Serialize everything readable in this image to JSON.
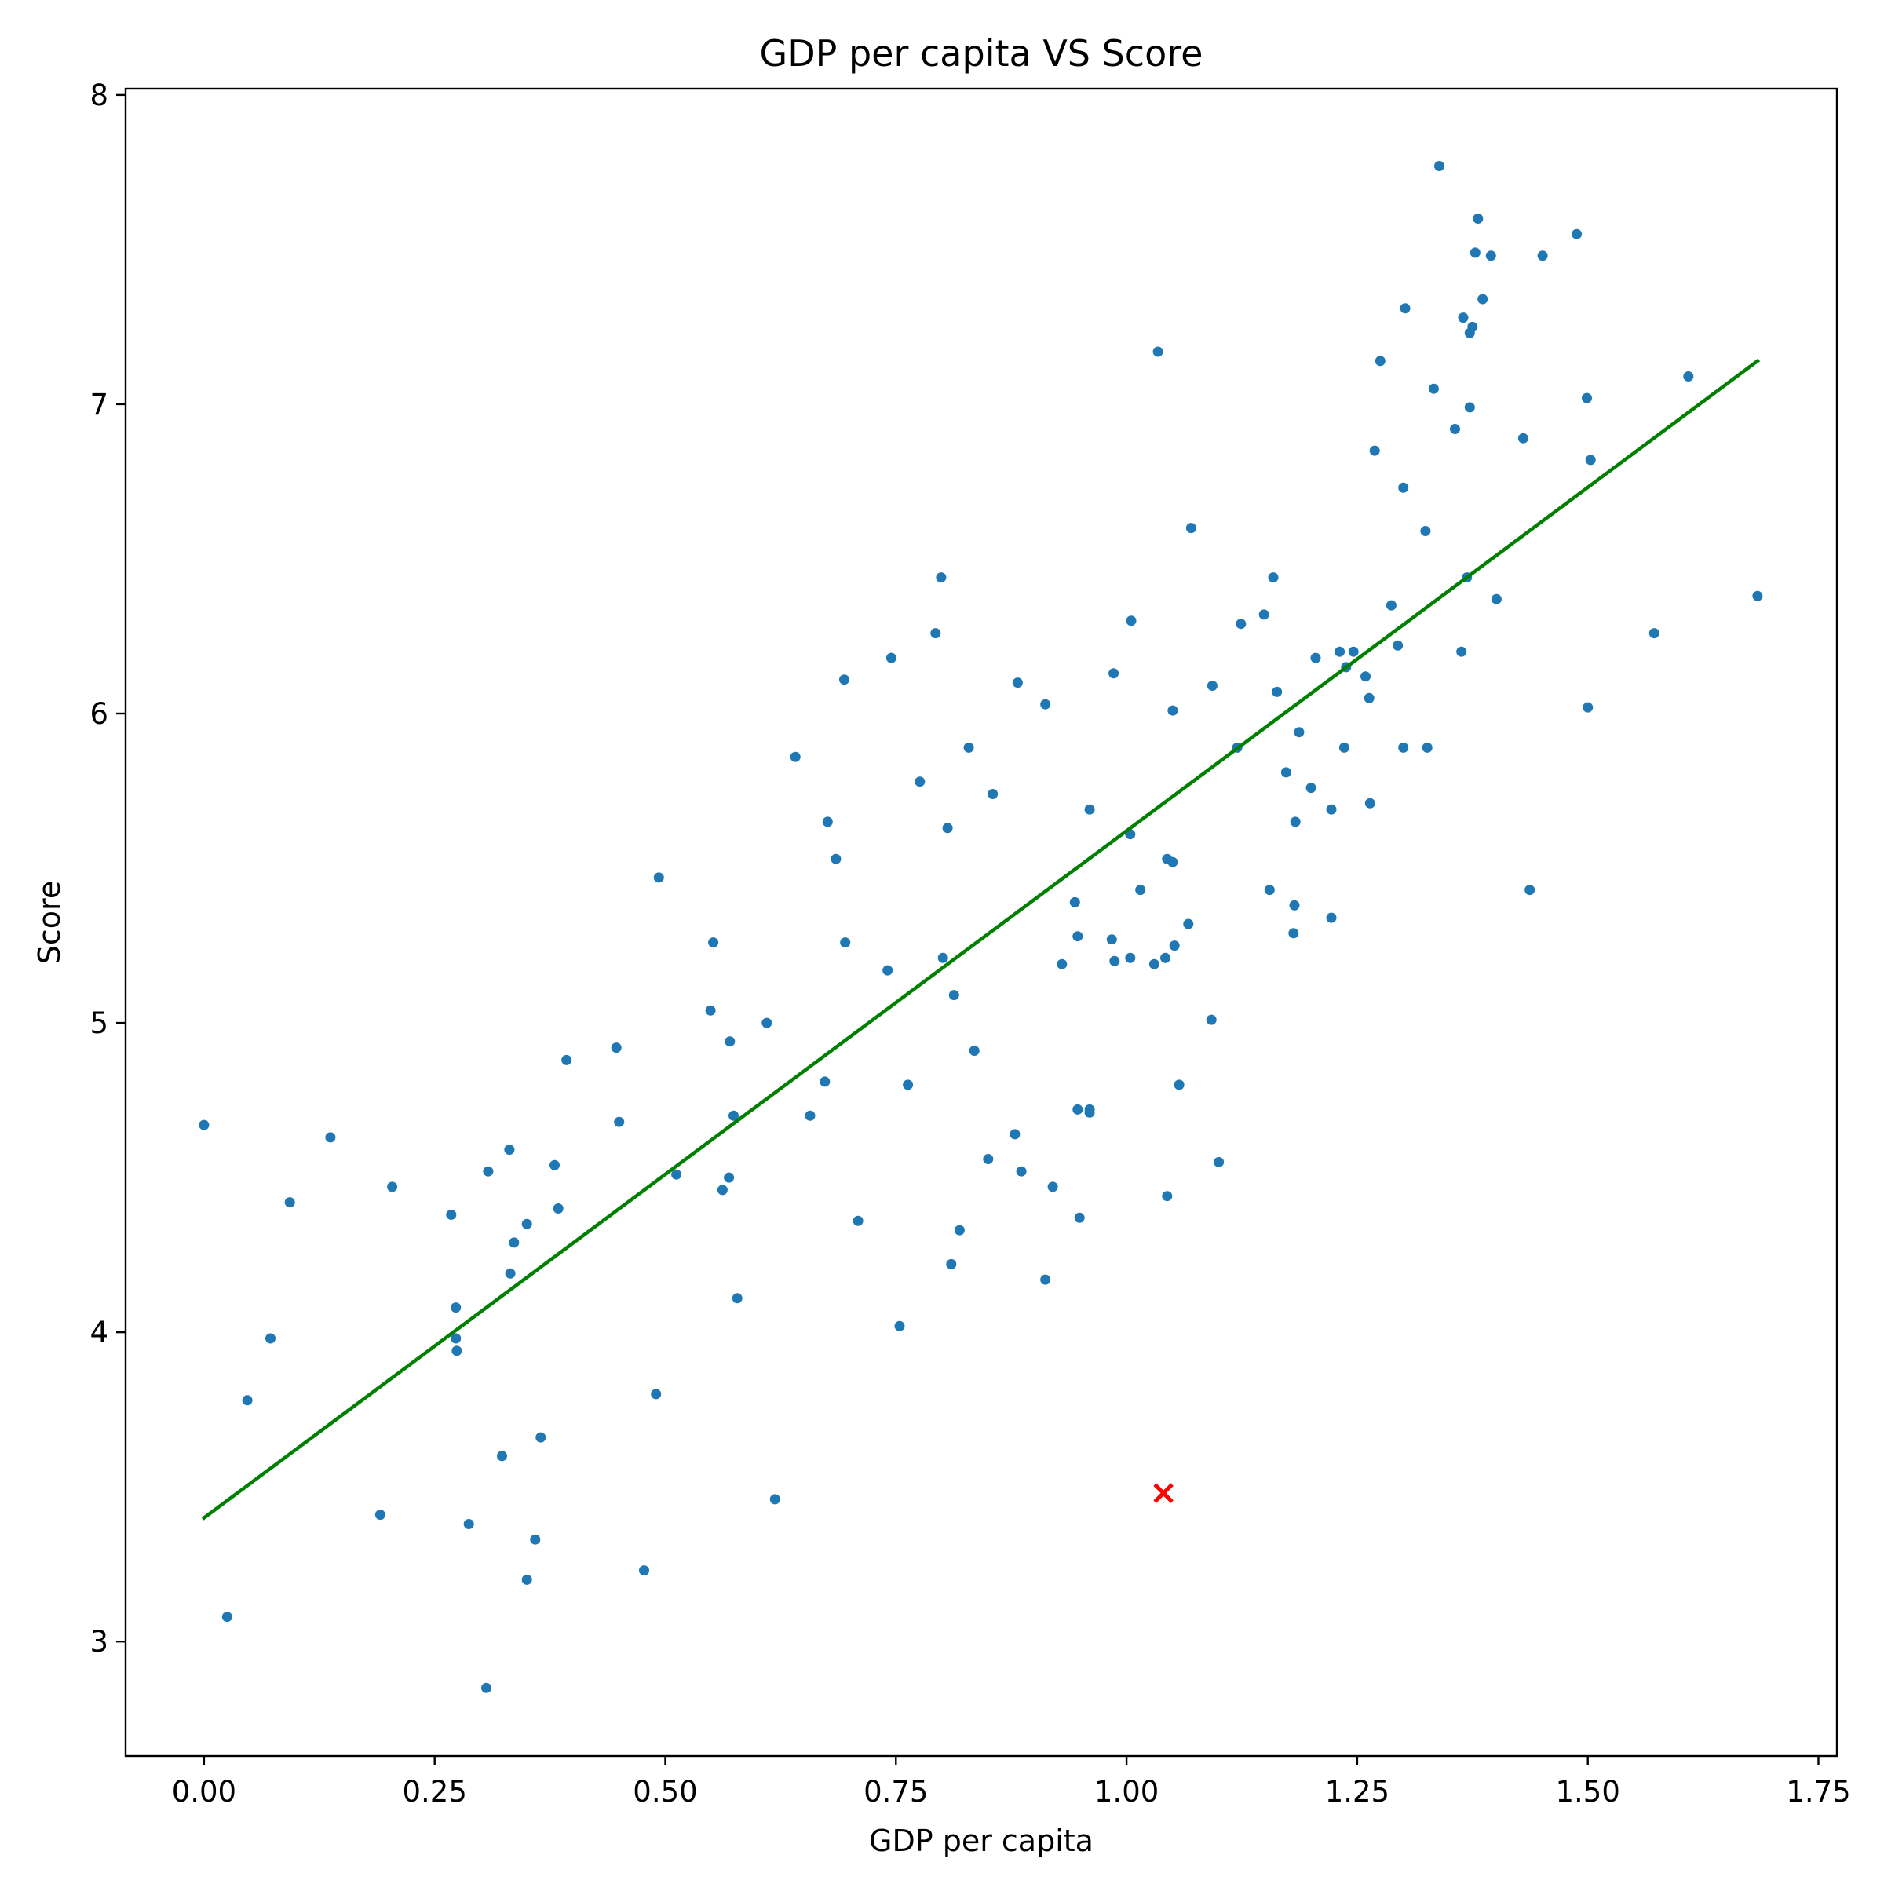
{
  "chart_data": {
    "type": "scatter",
    "title": "GDP per capita VS Score",
    "xlabel": "GDP per capita",
    "ylabel": "Score",
    "xlim": [
      -0.085,
      1.77
    ],
    "ylim": [
      2.63,
      8.02
    ],
    "xticks": [
      0.0,
      0.25,
      0.5,
      0.75,
      1.0,
      1.25,
      1.5,
      1.75
    ],
    "xtick_labels": [
      "0.00",
      "0.25",
      "0.50",
      "0.75",
      "1.00",
      "1.25",
      "1.50",
      "1.75"
    ],
    "yticks": [
      3,
      4,
      5,
      6,
      7,
      8
    ],
    "ytick_labels": [
      "3",
      "4",
      "5",
      "6",
      "7",
      "8"
    ],
    "grid": false,
    "colors": {
      "points": "#1f77b4",
      "regression": "#008000",
      "highlight": "#ff0000"
    },
    "points": [
      [
        0.0,
        4.67
      ],
      [
        0.025,
        3.08
      ],
      [
        0.047,
        3.78
      ],
      [
        0.072,
        3.98
      ],
      [
        0.093,
        4.42
      ],
      [
        0.137,
        4.63
      ],
      [
        0.191,
        3.41
      ],
      [
        0.204,
        4.47
      ],
      [
        0.268,
        4.38
      ],
      [
        0.273,
        4.08
      ],
      [
        0.273,
        3.98
      ],
      [
        0.274,
        3.94
      ],
      [
        0.287,
        3.38
      ],
      [
        0.306,
        2.85
      ],
      [
        0.308,
        4.52
      ],
      [
        0.323,
        3.6
      ],
      [
        0.331,
        4.59
      ],
      [
        0.332,
        4.19
      ],
      [
        0.336,
        4.29
      ],
      [
        0.35,
        4.35
      ],
      [
        0.35,
        3.2
      ],
      [
        0.359,
        3.33
      ],
      [
        0.365,
        3.66
      ],
      [
        0.38,
        4.54
      ],
      [
        0.384,
        4.4
      ],
      [
        0.393,
        4.88
      ],
      [
        0.447,
        4.92
      ],
      [
        0.45,
        4.68
      ],
      [
        0.477,
        3.23
      ],
      [
        0.49,
        3.8
      ],
      [
        0.493,
        5.47
      ],
      [
        0.512,
        4.51
      ],
      [
        0.549,
        5.04
      ],
      [
        0.552,
        5.26
      ],
      [
        0.562,
        4.46
      ],
      [
        0.569,
        4.5
      ],
      [
        0.57,
        4.94
      ],
      [
        0.574,
        4.7
      ],
      [
        0.578,
        4.11
      ],
      [
        0.61,
        5.0
      ],
      [
        0.619,
        3.46
      ],
      [
        0.641,
        5.86
      ],
      [
        0.657,
        4.7
      ],
      [
        0.673,
        4.81
      ],
      [
        0.676,
        5.65
      ],
      [
        0.685,
        5.53
      ],
      [
        0.694,
        6.11
      ],
      [
        0.695,
        5.26
      ],
      [
        0.709,
        4.36
      ],
      [
        0.741,
        5.17
      ],
      [
        0.745,
        6.18
      ],
      [
        0.754,
        4.02
      ],
      [
        0.763,
        4.8
      ],
      [
        0.776,
        5.78
      ],
      [
        0.793,
        6.26
      ],
      [
        0.799,
        6.44
      ],
      [
        0.801,
        5.21
      ],
      [
        0.806,
        5.63
      ],
      [
        0.81,
        4.22
      ],
      [
        0.813,
        5.09
      ],
      [
        0.819,
        4.33
      ],
      [
        0.829,
        5.89
      ],
      [
        0.835,
        4.91
      ],
      [
        0.85,
        4.56
      ],
      [
        0.855,
        5.74
      ],
      [
        0.879,
        4.64
      ],
      [
        0.882,
        6.1
      ],
      [
        0.886,
        4.52
      ],
      [
        0.912,
        6.03
      ],
      [
        0.912,
        4.17
      ],
      [
        0.92,
        4.47
      ],
      [
        0.93,
        5.19
      ],
      [
        0.944,
        5.39
      ],
      [
        0.947,
        5.28
      ],
      [
        0.947,
        4.72
      ],
      [
        0.949,
        4.37
      ],
      [
        0.96,
        4.72
      ],
      [
        0.96,
        4.71
      ],
      [
        0.96,
        5.69
      ],
      [
        0.984,
        5.27
      ],
      [
        0.986,
        6.13
      ],
      [
        0.987,
        5.2
      ],
      [
        1.004,
        5.21
      ],
      [
        1.004,
        5.61
      ],
      [
        1.005,
        6.3
      ],
      [
        1.015,
        5.43
      ],
      [
        1.03,
        5.19
      ],
      [
        1.034,
        7.17
      ],
      [
        1.042,
        5.21
      ],
      [
        1.044,
        4.44
      ],
      [
        1.044,
        5.53
      ],
      [
        1.05,
        5.52
      ],
      [
        1.05,
        6.01
      ],
      [
        1.052,
        5.25
      ],
      [
        1.057,
        4.8
      ],
      [
        1.067,
        5.32
      ],
      [
        1.07,
        6.6
      ],
      [
        1.092,
        5.01
      ],
      [
        1.093,
        6.09
      ],
      [
        1.1,
        4.55
      ],
      [
        1.12,
        5.89
      ],
      [
        1.124,
        6.29
      ],
      [
        1.149,
        6.32
      ],
      [
        1.155,
        5.43
      ],
      [
        1.159,
        6.44
      ],
      [
        1.163,
        6.07
      ],
      [
        1.173,
        5.81
      ],
      [
        1.181,
        5.29
      ],
      [
        1.182,
        5.38
      ],
      [
        1.183,
        5.65
      ],
      [
        1.187,
        5.94
      ],
      [
        1.2,
        5.76
      ],
      [
        1.205,
        6.18
      ],
      [
        1.222,
        5.69
      ],
      [
        1.222,
        5.34
      ],
      [
        1.231,
        6.2
      ],
      [
        1.236,
        5.89
      ],
      [
        1.238,
        6.15
      ],
      [
        1.246,
        6.2
      ],
      [
        1.259,
        6.12
      ],
      [
        1.263,
        6.05
      ],
      [
        1.264,
        5.71
      ],
      [
        1.269,
        6.85
      ],
      [
        1.275,
        7.14
      ],
      [
        1.287,
        6.35
      ],
      [
        1.294,
        6.22
      ],
      [
        1.3,
        5.89
      ],
      [
        1.3,
        6.73
      ],
      [
        1.302,
        7.31
      ],
      [
        1.324,
        6.59
      ],
      [
        1.326,
        5.89
      ],
      [
        1.333,
        7.05
      ],
      [
        1.339,
        7.77
      ],
      [
        1.356,
        6.92
      ],
      [
        1.363,
        6.2
      ],
      [
        1.365,
        7.28
      ],
      [
        1.369,
        6.44
      ],
      [
        1.372,
        6.99
      ],
      [
        1.372,
        7.23
      ],
      [
        1.375,
        7.25
      ],
      [
        1.378,
        7.49
      ],
      [
        1.381,
        7.6
      ],
      [
        1.386,
        7.34
      ],
      [
        1.395,
        7.48
      ],
      [
        1.401,
        6.37
      ],
      [
        1.43,
        6.89
      ],
      [
        1.437,
        5.43
      ],
      [
        1.451,
        7.48
      ],
      [
        1.488,
        7.55
      ],
      [
        1.499,
        7.02
      ],
      [
        1.5,
        6.02
      ],
      [
        1.503,
        6.82
      ],
      [
        1.572,
        6.26
      ],
      [
        1.609,
        7.09
      ],
      [
        1.684,
        6.38
      ]
    ],
    "regression_line": {
      "x": [
        0.0,
        1.684
      ],
      "y": [
        3.4,
        7.14
      ]
    },
    "highlight_point": {
      "x": 1.04,
      "y": 3.48
    }
  }
}
